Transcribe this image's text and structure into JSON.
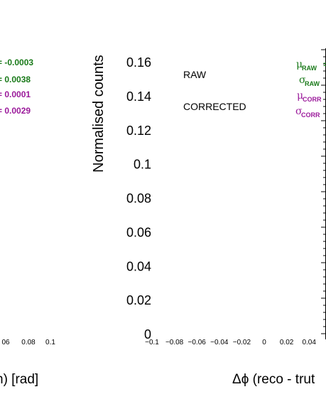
{
  "colors": {
    "raw": "#1a7a1a",
    "corrected": "#9b1a9b"
  },
  "left_panel": {
    "xaxis_title_fragment": "h)  [rad]",
    "xtick_fragments": [
      "06",
      "0.08",
      "0.1"
    ],
    "stats": [
      {
        "value": "= -0.0003",
        "series": "raw"
      },
      {
        "value": "= 0.0038",
        "series": "raw"
      },
      {
        "value": "= 0.0001",
        "series": "corrected"
      },
      {
        "value": "= 0.0029",
        "series": "corrected"
      }
    ]
  },
  "chart_data": {
    "type": "line",
    "title": "",
    "ylabel": "Normalised counts",
    "xlabel": "Δϕ  (reco - trut",
    "ylim": [
      0,
      0.16
    ],
    "xlim": [
      -0.1,
      0.04
    ],
    "grid": false,
    "yticks": [
      "0",
      "0.02",
      "0.04",
      "0.06",
      "0.08",
      "0.1",
      "0.12",
      "0.14",
      "0.16"
    ],
    "xticks": [
      "−0.1",
      "−0.08",
      "−0.06",
      "−0.04",
      "−0.02",
      "0",
      "0.02",
      "0.04",
      "0"
    ],
    "legend_position": "top-left",
    "series": [
      {
        "name": "RAW",
        "values": []
      },
      {
        "name": "CORRECTED",
        "values": []
      }
    ],
    "stats": [
      {
        "symbol": "μ",
        "subscript": "RAW",
        "value": "=",
        "series": "raw"
      },
      {
        "symbol": "σ",
        "subscript": "RAW",
        "value": "",
        "series": "raw"
      },
      {
        "symbol": "μ",
        "subscript": "CORR",
        "value": "",
        "series": "corrected"
      },
      {
        "symbol": "σ",
        "subscript": "CORR",
        "value": "",
        "series": "corrected"
      }
    ]
  }
}
